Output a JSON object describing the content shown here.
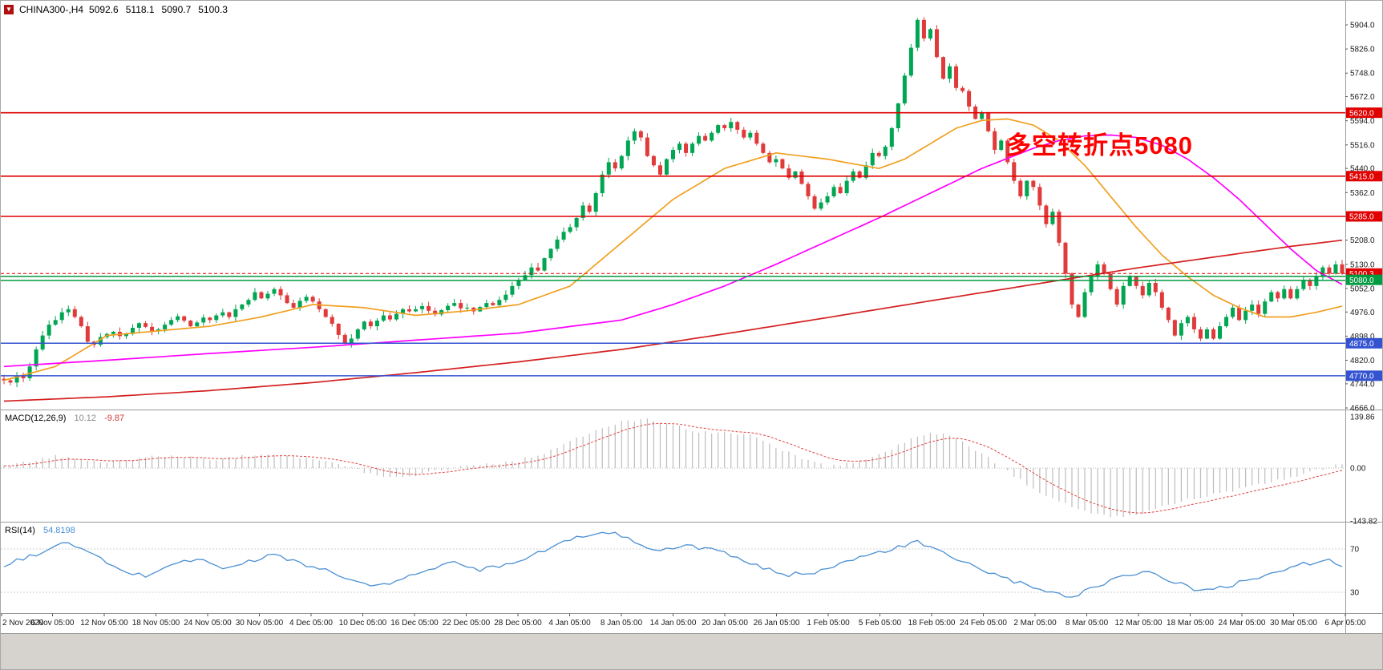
{
  "symbol_bar": {
    "dropdown_icon": "▼",
    "symbol": "CHINA300-,H4",
    "open": "5092.6",
    "high": "5118.1",
    "low": "5090.7",
    "close": "5100.3"
  },
  "annotation": {
    "text": "多空转折点5080"
  },
  "colors": {
    "bull": "#00a651",
    "bear": "#e03a3a",
    "ma_fast": "#f0a020",
    "ma_mid": "#ff00ff",
    "ma_slow": "#d42020",
    "macd_hist": "#bdbdbd",
    "macd_signal": "#e04545",
    "rsi_line": "#4a8fd3",
    "level_red": "#e00000",
    "level_green": "#009a40",
    "level_blue": "#3353d0"
  },
  "chart_data": {
    "type": "candlestick",
    "title": "CHINA300-,H4",
    "subpanels": [
      "MACD",
      "RSI"
    ],
    "price_panel": {
      "range": [
        4660.8,
        5981.7
      ],
      "ticks": [
        5904,
        5826,
        5748,
        5672,
        5594,
        5516,
        5440,
        5362,
        5285,
        5208,
        5130,
        5052,
        4976,
        4898,
        4820,
        4744,
        4666
      ],
      "hlines": [
        {
          "price": 5620,
          "color": "#e00000",
          "width": 1.6
        },
        {
          "price": 5415,
          "color": "#e00000",
          "width": 1.6
        },
        {
          "price": 5285,
          "color": "#e00000",
          "width": 1.6
        },
        {
          "price": 5091,
          "color": "#009a40",
          "width": 1.5
        },
        {
          "price": 5078,
          "color": "#009a40",
          "width": 1.5
        },
        {
          "price": 4875,
          "color": "#3353d0",
          "width": 1.5
        },
        {
          "price": 4770,
          "color": "#3353d0",
          "width": 1.5
        },
        {
          "price": 5100.3,
          "color": "#e00000",
          "width": 1,
          "dash": "4,3"
        }
      ],
      "axis_boxes": [
        {
          "value": 5620.0,
          "text": "5620.0",
          "color": "#e00000"
        },
        {
          "value": 5415.0,
          "text": "5415.0",
          "color": "#e00000"
        },
        {
          "value": 5285.0,
          "text": "5285.0",
          "color": "#e00000"
        },
        {
          "value": 5100.3,
          "text": "5100.3",
          "color": "#e00000"
        },
        {
          "value": 5080.0,
          "text": "5080.0",
          "color": "#009a40"
        },
        {
          "value": 4875.0,
          "text": "4875.0",
          "color": "#3353d0"
        },
        {
          "value": 4770.0,
          "text": "4770.0",
          "color": "#3353d0"
        }
      ]
    },
    "candles": {
      "first_open": 4760,
      "closes": [
        4755,
        4748,
        4770,
        4762,
        4800,
        4855,
        4900,
        4935,
        4950,
        4975,
        4985,
        4960,
        4930,
        4880,
        4870,
        4895,
        4905,
        4912,
        4898,
        4905,
        4925,
        4940,
        4928,
        4915,
        4920,
        4935,
        4950,
        4962,
        4948,
        4930,
        4942,
        4958,
        4950,
        4965,
        4975,
        4960,
        4985,
        5000,
        5015,
        5040,
        5020,
        5035,
        5050,
        5030,
        5005,
        4990,
        5012,
        5025,
        5010,
        4985,
        4960,
        4938,
        4902,
        4875,
        4890,
        4920,
        4945,
        4930,
        4948,
        4965,
        4952,
        4970,
        4985,
        4978,
        4985,
        4995,
        4980,
        4968,
        4982,
        4996,
        5005,
        4988,
        4990,
        4978,
        4992,
        5005,
        4998,
        5015,
        5032,
        5060,
        5080,
        5095,
        5120,
        5110,
        5150,
        5180,
        5210,
        5235,
        5250,
        5280,
        5320,
        5300,
        5360,
        5420,
        5460,
        5440,
        5480,
        5530,
        5560,
        5540,
        5480,
        5450,
        5420,
        5470,
        5500,
        5520,
        5490,
        5520,
        5545,
        5530,
        5555,
        5580,
        5570,
        5590,
        5565,
        5540,
        5555,
        5520,
        5490,
        5460,
        5470,
        5440,
        5410,
        5430,
        5390,
        5350,
        5310,
        5330,
        5350,
        5380,
        5360,
        5400,
        5430,
        5410,
        5450,
        5490,
        5480,
        5510,
        5570,
        5650,
        5740,
        5830,
        5920,
        5860,
        5890,
        5800,
        5730,
        5770,
        5700,
        5690,
        5640,
        5600,
        5620,
        5560,
        5500,
        5530,
        5460,
        5400,
        5350,
        5400,
        5380,
        5320,
        5260,
        5300,
        5200,
        5100,
        5000,
        4960,
        5040,
        5090,
        5130,
        5100,
        5050,
        5000,
        5060,
        5090,
        5060,
        5030,
        5070,
        5040,
        4990,
        4950,
        4900,
        4940,
        4960,
        4920,
        4890,
        4920,
        4890,
        4930,
        4960,
        4990,
        4950,
        4980,
        5000,
        4970,
        5010,
        5040,
        5020,
        5050,
        5020,
        5050,
        5080,
        5060,
        5090,
        5120,
        5100,
        5130,
        5100
      ]
    },
    "ma_lines": {
      "fast": [
        [
          0,
          4755
        ],
        [
          8,
          4800
        ],
        [
          16,
          4900
        ],
        [
          24,
          4915
        ],
        [
          32,
          4930
        ],
        [
          40,
          4960
        ],
        [
          48,
          5000
        ],
        [
          56,
          4990
        ],
        [
          64,
          4965
        ],
        [
          72,
          4980
        ],
        [
          80,
          5000
        ],
        [
          88,
          5060
        ],
        [
          96,
          5200
        ],
        [
          104,
          5340
        ],
        [
          112,
          5440
        ],
        [
          120,
          5490
        ],
        [
          128,
          5470
        ],
        [
          136,
          5440
        ],
        [
          140,
          5470
        ],
        [
          144,
          5520
        ],
        [
          148,
          5570
        ],
        [
          152,
          5595
        ],
        [
          156,
          5600
        ],
        [
          160,
          5580
        ],
        [
          164,
          5530
        ],
        [
          168,
          5450
        ],
        [
          172,
          5350
        ],
        [
          176,
          5250
        ],
        [
          180,
          5160
        ],
        [
          184,
          5090
        ],
        [
          188,
          5030
        ],
        [
          192,
          4990
        ],
        [
          196,
          4960
        ],
        [
          200,
          4960
        ],
        [
          204,
          4975
        ],
        [
          208,
          4995
        ]
      ],
      "mid": [
        [
          0,
          4800
        ],
        [
          16,
          4820
        ],
        [
          32,
          4842
        ],
        [
          48,
          4862
        ],
        [
          64,
          4885
        ],
        [
          80,
          4908
        ],
        [
          96,
          4950
        ],
        [
          104,
          5000
        ],
        [
          112,
          5060
        ],
        [
          120,
          5130
        ],
        [
          128,
          5205
        ],
        [
          136,
          5280
        ],
        [
          144,
          5360
        ],
        [
          152,
          5440
        ],
        [
          160,
          5505
        ],
        [
          164,
          5530
        ],
        [
          168,
          5545
        ],
        [
          172,
          5548
        ],
        [
          176,
          5540
        ],
        [
          180,
          5515
        ],
        [
          184,
          5470
        ],
        [
          188,
          5410
        ],
        [
          192,
          5340
        ],
        [
          196,
          5260
        ],
        [
          200,
          5180
        ],
        [
          204,
          5110
        ],
        [
          208,
          5065
        ]
      ],
      "slow": [
        [
          0,
          4688
        ],
        [
          16,
          4702
        ],
        [
          32,
          4722
        ],
        [
          48,
          4748
        ],
        [
          64,
          4780
        ],
        [
          80,
          4815
        ],
        [
          96,
          4855
        ],
        [
          112,
          4905
        ],
        [
          128,
          4958
        ],
        [
          144,
          5012
        ],
        [
          160,
          5065
        ],
        [
          176,
          5118
        ],
        [
          192,
          5165
        ],
        [
          200,
          5188
        ],
        [
          208,
          5208
        ]
      ]
    },
    "macd_panel": {
      "name": "MACD(12,26,9)",
      "value_main": "10.12",
      "value_signal": "-9.87",
      "range": [
        -146,
        157.3
      ],
      "ticks": [
        {
          "v": 139.86,
          "label": "139.86"
        },
        {
          "v": 0,
          "label": "0.00"
        },
        {
          "v": -143.82,
          "label": "-143.82"
        }
      ],
      "anchors": [
        [
          0,
          3
        ],
        [
          4,
          18
        ],
        [
          8,
          32
        ],
        [
          12,
          26
        ],
        [
          16,
          14
        ],
        [
          20,
          24
        ],
        [
          24,
          34
        ],
        [
          28,
          30
        ],
        [
          32,
          22
        ],
        [
          36,
          30
        ],
        [
          40,
          40
        ],
        [
          44,
          36
        ],
        [
          48,
          26
        ],
        [
          52,
          10
        ],
        [
          56,
          -10
        ],
        [
          60,
          -26
        ],
        [
          64,
          -18
        ],
        [
          68,
          -4
        ],
        [
          72,
          8
        ],
        [
          76,
          12
        ],
        [
          80,
          20
        ],
        [
          84,
          42
        ],
        [
          88,
          72
        ],
        [
          92,
          102
        ],
        [
          96,
          125
        ],
        [
          100,
          136
        ],
        [
          104,
          118
        ],
        [
          108,
          96
        ],
        [
          112,
          100
        ],
        [
          116,
          88
        ],
        [
          120,
          58
        ],
        [
          124,
          28
        ],
        [
          128,
          4
        ],
        [
          132,
          16
        ],
        [
          136,
          36
        ],
        [
          140,
          70
        ],
        [
          144,
          100
        ],
        [
          148,
          80
        ],
        [
          152,
          40
        ],
        [
          156,
          -10
        ],
        [
          160,
          -55
        ],
        [
          164,
          -90
        ],
        [
          168,
          -118
        ],
        [
          172,
          -135
        ],
        [
          176,
          -128
        ],
        [
          180,
          -105
        ],
        [
          184,
          -85
        ],
        [
          188,
          -72
        ],
        [
          192,
          -58
        ],
        [
          196,
          -42
        ],
        [
          200,
          -25
        ],
        [
          204,
          -6
        ],
        [
          208,
          10
        ]
      ]
    },
    "rsi_panel": {
      "name": "RSI(14)",
      "value": "54.8198",
      "range": [
        10.7,
        94.4
      ],
      "ticks": [
        {
          "v": 70,
          "label": "70"
        },
        {
          "v": 30,
          "label": "30"
        }
      ],
      "anchors": [
        [
          0,
          55
        ],
        [
          4,
          63
        ],
        [
          8,
          72
        ],
        [
          10,
          76
        ],
        [
          14,
          64
        ],
        [
          18,
          50
        ],
        [
          22,
          45
        ],
        [
          26,
          56
        ],
        [
          30,
          61
        ],
        [
          34,
          52
        ],
        [
          38,
          58
        ],
        [
          42,
          65
        ],
        [
          46,
          57
        ],
        [
          50,
          50
        ],
        [
          54,
          41
        ],
        [
          58,
          35
        ],
        [
          62,
          42
        ],
        [
          66,
          52
        ],
        [
          70,
          57
        ],
        [
          74,
          51
        ],
        [
          78,
          56
        ],
        [
          82,
          64
        ],
        [
          86,
          74
        ],
        [
          90,
          82
        ],
        [
          94,
          86
        ],
        [
          98,
          77
        ],
        [
          102,
          68
        ],
        [
          106,
          73
        ],
        [
          110,
          70
        ],
        [
          114,
          61
        ],
        [
          118,
          52
        ],
        [
          122,
          46
        ],
        [
          126,
          49
        ],
        [
          130,
          57
        ],
        [
          134,
          63
        ],
        [
          138,
          70
        ],
        [
          142,
          76
        ],
        [
          146,
          66
        ],
        [
          150,
          56
        ],
        [
          154,
          46
        ],
        [
          158,
          38
        ],
        [
          162,
          30
        ],
        [
          166,
          26
        ],
        [
          170,
          36
        ],
        [
          174,
          46
        ],
        [
          178,
          49
        ],
        [
          182,
          39
        ],
        [
          186,
          31
        ],
        [
          190,
          35
        ],
        [
          194,
          43
        ],
        [
          198,
          49
        ],
        [
          202,
          56
        ],
        [
          206,
          59
        ],
        [
          208,
          55
        ]
      ]
    },
    "time_axis": [
      "2 Nov 2020",
      "6 Nov 05:00",
      "12 Nov 05:00",
      "18 Nov 05:00",
      "24 Nov 05:00",
      "30 Nov 05:00",
      "4 Dec 05:00",
      "10 Dec 05:00",
      "16 Dec 05:00",
      "22 Dec 05:00",
      "28 Dec 05:00",
      "4 Jan 05:00",
      "8 Jan 05:00",
      "14 Jan 05:00",
      "20 Jan 05:00",
      "26 Jan 05:00",
      "1 Feb 05:00",
      "5 Feb 05:00",
      "18 Feb 05:00",
      "24 Feb 05:00",
      "2 Mar 05:00",
      "8 Mar 05:00",
      "12 Mar 05:00",
      "18 Mar 05:00",
      "24 Mar 05:00",
      "30 Mar 05:00",
      "6 Apr 05:00"
    ]
  }
}
